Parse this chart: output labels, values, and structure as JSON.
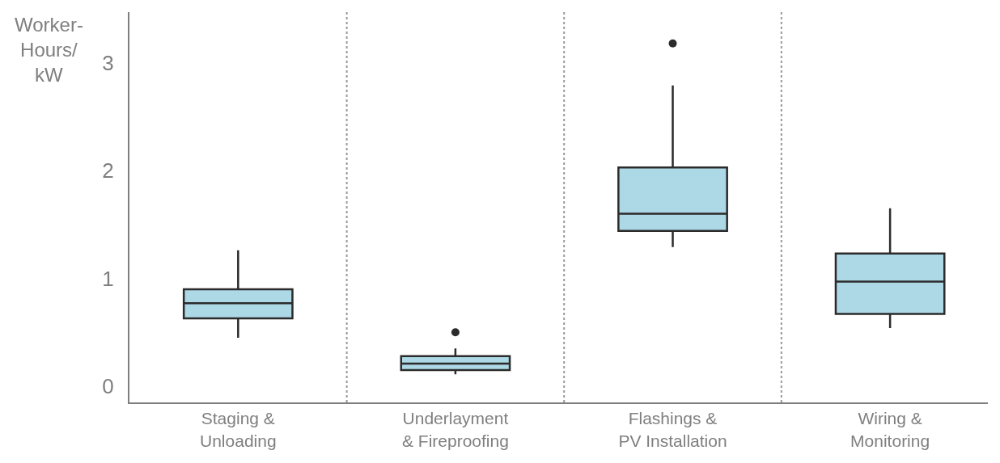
{
  "chart_data": {
    "type": "box",
    "ylabel": "Worker-\nHours/\nkW",
    "categories": [
      "Staging &\nUnloading",
      "Underlayment\n& Fireproofing",
      "Flashings &\nPV Installation",
      "Wiring &\nMonitoring"
    ],
    "boxes": [
      {
        "low": 0.45,
        "q1": 0.63,
        "median": 0.77,
        "q3": 0.9,
        "high": 1.26
      },
      {
        "low": 0.11,
        "q1": 0.15,
        "median": 0.21,
        "q3": 0.28,
        "high": 0.35,
        "outliers": [
          0.5
        ]
      },
      {
        "low": 1.29,
        "q1": 1.44,
        "median": 1.6,
        "q3": 2.03,
        "high": 2.79,
        "outliers": [
          3.18
        ]
      },
      {
        "low": 0.54,
        "q1": 0.67,
        "median": 0.97,
        "q3": 1.23,
        "high": 1.65
      }
    ],
    "color": "#add8e6",
    "ylim": [
      -0.15,
      3.47
    ],
    "yticks": [
      0,
      1,
      2,
      3
    ],
    "grid": "x"
  }
}
